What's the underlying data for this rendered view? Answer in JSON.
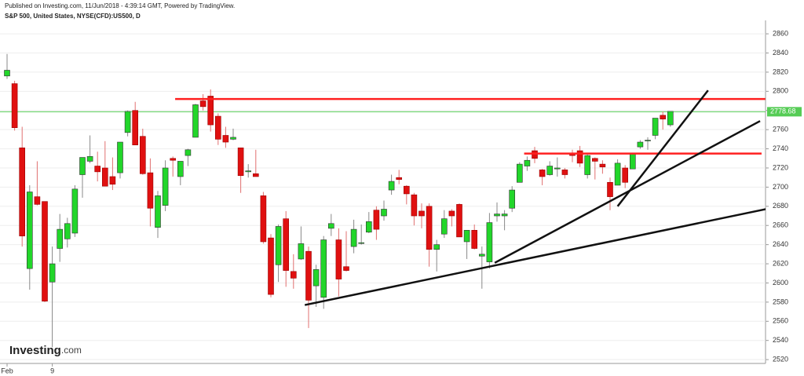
{
  "header": {
    "published": "Published on Investing.com, 11/Jun/2018 - 4:39:14 GMT, Powered by TradingView.",
    "instrument": "S&P 500, United States, NYSE(CFD):US500, D"
  },
  "logo": {
    "brand": "Investing",
    "suffix": ".com"
  },
  "chart_data": {
    "type": "candlestick",
    "categories": [
      "Feb",
      null,
      null,
      null,
      null,
      null,
      "9",
      null,
      null,
      null,
      null,
      null,
      null,
      null,
      null,
      null,
      null,
      null,
      null,
      null,
      null,
      null,
      null,
      null,
      null,
      null,
      null,
      null,
      null,
      null,
      null,
      null,
      null,
      null,
      null,
      null,
      null,
      null,
      null,
      null,
      null,
      null,
      null,
      null,
      null,
      null,
      null,
      null,
      null,
      null,
      null,
      null,
      null,
      null,
      null,
      null,
      null,
      null,
      null,
      null,
      null,
      null,
      null,
      null,
      null,
      null,
      null,
      null,
      null,
      null,
      null,
      null,
      null,
      null,
      null,
      null,
      null,
      null,
      null,
      null,
      null,
      null,
      null,
      null,
      null,
      null,
      null,
      null,
      null
    ],
    "open": [
      2816,
      2808,
      2741,
      2615,
      2690,
      2685,
      2601,
      2636,
      2646,
      2652,
      2713,
      2727,
      2722,
      2720,
      2711,
      2715,
      2757,
      2780,
      2753,
      2715,
      2658,
      2681,
      2730,
      2711,
      2733,
      2752,
      2790,
      2795,
      2774,
      2754,
      2750,
      2741,
      2716,
      2714,
      2691,
      2647,
      2619,
      2667,
      2612,
      2625,
      2633,
      2597,
      2585,
      2657,
      2645,
      2617,
      2638,
      2642,
      2653,
      2676,
      2670,
      2697,
      2710,
      2701,
      2692,
      2675,
      2680,
      2635,
      2651,
      2675,
      2682,
      2643,
      2655,
      2628,
      2622,
      2670,
      2670,
      2678,
      2705,
      2722,
      2738,
      2718,
      2713,
      2719,
      2718,
      2735,
      2738,
      2713,
      2730,
      2724,
      2705,
      2702,
      2720,
      2719,
      2742,
      2749,
      2754,
      2775,
      2765
    ],
    "high": [
      2839,
      2811,
      2763,
      2702,
      2727,
      2685,
      2638,
      2672,
      2668,
      2702,
      2731,
      2754,
      2737,
      2748,
      2731,
      2747,
      2780,
      2789,
      2761,
      2730,
      2696,
      2728,
      2732,
      2727,
      2740,
      2787,
      2797,
      2802,
      2777,
      2763,
      2761,
      2741,
      2724,
      2739,
      2695,
      2651,
      2661,
      2675,
      2630,
      2659,
      2638,
      2619,
      2649,
      2672,
      2657,
      2654,
      2666,
      2661,
      2674,
      2680,
      2686,
      2713,
      2718,
      2702,
      2694,
      2683,
      2683,
      2645,
      2676,
      2677,
      2683,
      2655,
      2661,
      2638,
      2673,
      2684,
      2676,
      2701,
      2726,
      2732,
      2742,
      2719,
      2727,
      2731,
      2720,
      2739,
      2743,
      2734,
      2731,
      2728,
      2710,
      2729,
      2723,
      2736,
      2749,
      2752,
      2772,
      2779,
      2779
    ],
    "low": [
      2813,
      2759,
      2638,
      2593,
      2681,
      2580,
      2533,
      2622,
      2637,
      2648,
      2689,
      2725,
      2706,
      2701,
      2697,
      2709,
      2753,
      2744,
      2713,
      2659,
      2647,
      2675,
      2711,
      2702,
      2722,
      2752,
      2780,
      2758,
      2744,
      2741,
      2749,
      2694,
      2710,
      2712,
      2641,
      2585,
      2601,
      2596,
      2594,
      2624,
      2553,
      2575,
      2573,
      2649,
      2586,
      2612,
      2631,
      2640,
      2652,
      2645,
      2665,
      2692,
      2703,
      2682,
      2660,
      2657,
      2617,
      2612,
      2647,
      2659,
      2648,
      2625,
      2635,
      2594,
      2615,
      2664,
      2655,
      2674,
      2705,
      2717,
      2725,
      2702,
      2712,
      2711,
      2709,
      2726,
      2721,
      2709,
      2708,
      2714,
      2676,
      2702,
      2699,
      2719,
      2740,
      2739,
      2750,
      2760,
      2763
    ],
    "close": [
      2822,
      2762,
      2649,
      2695,
      2682,
      2581,
      2620,
      2656,
      2662,
      2698,
      2731,
      2732,
      2716,
      2701,
      2703,
      2747,
      2779,
      2744,
      2714,
      2678,
      2691,
      2720,
      2728,
      2727,
      2739,
      2786,
      2784,
      2765,
      2750,
      2747,
      2752,
      2712,
      2717,
      2711,
      2643,
      2588,
      2659,
      2613,
      2605,
      2641,
      2582,
      2614,
      2645,
      2662,
      2604,
      2613,
      2656,
      2642,
      2664,
      2656,
      2677,
      2706,
      2708,
      2693,
      2670,
      2670,
      2635,
      2640,
      2667,
      2670,
      2648,
      2655,
      2636,
      2630,
      2663,
      2672,
      2672,
      2697,
      2724,
      2728,
      2730,
      2711,
      2722,
      2720,
      2713,
      2733,
      2725,
      2733,
      2727,
      2721,
      2690,
      2725,
      2705,
      2735,
      2747,
      2749,
      2772,
      2771,
      2779
    ],
    "up_color": "#22d62a",
    "down_color": "#e01010",
    "last_price": {
      "value": 2778.68,
      "label": "2778.68",
      "color": "#55cc55"
    },
    "ylim": [
      2516,
      2874
    ],
    "yticks": [
      2520,
      2540,
      2560,
      2580,
      2600,
      2620,
      2640,
      2660,
      2680,
      2700,
      2720,
      2740,
      2760,
      2780,
      2800,
      2820,
      2840,
      2860
    ],
    "grid": true,
    "drawings": [
      {
        "color": "#ff2020",
        "x": [
          22.3,
          100.6
        ],
        "y": [
          2792,
          2792
        ]
      },
      {
        "color": "#ff2020",
        "x": [
          68.6,
          100.1
        ],
        "y": [
          2735,
          2735
        ]
      },
      {
        "color": "#111111",
        "x": [
          39.5,
          104.3
        ],
        "y": [
          2577,
          2683
        ]
      },
      {
        "color": "#111111",
        "x": [
          64.7,
          99.9
        ],
        "y": [
          2621,
          2769
        ]
      },
      {
        "color": "#111111",
        "x": [
          81.0,
          93.0
        ],
        "y": [
          2680,
          2801
        ]
      }
    ]
  }
}
